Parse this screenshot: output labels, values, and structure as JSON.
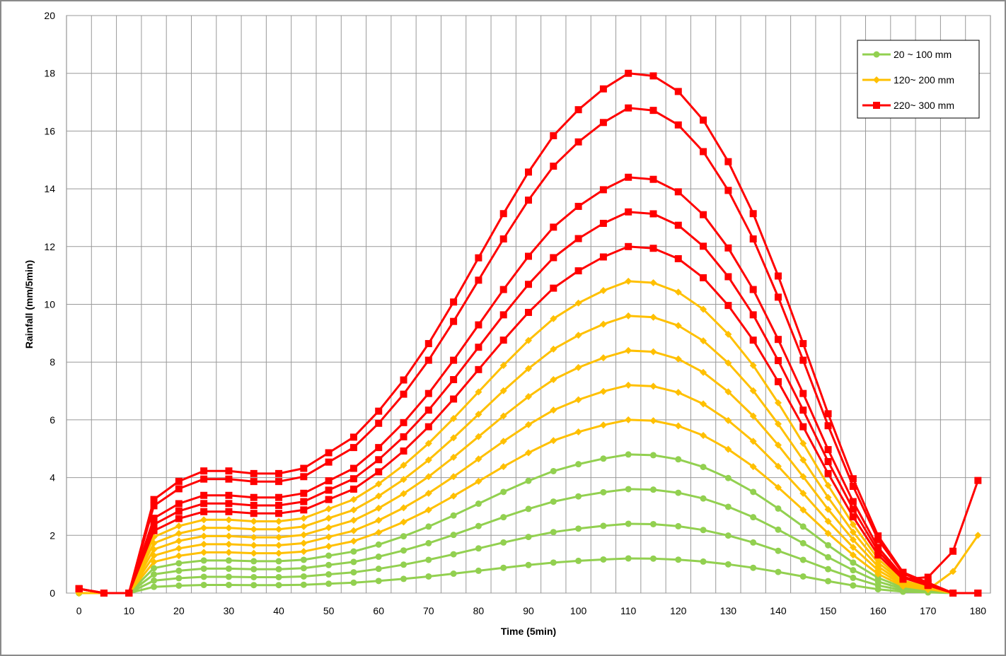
{
  "chart_data": {
    "type": "line",
    "title": "",
    "xlabel": "Time (5min)",
    "ylabel": "Rainfall  (mm/5min)",
    "xlim": [
      0,
      180
    ],
    "ylim": [
      0,
      20
    ],
    "xticks": [
      0,
      10,
      20,
      30,
      40,
      50,
      60,
      70,
      80,
      90,
      100,
      110,
      120,
      130,
      140,
      150,
      160,
      170,
      180
    ],
    "yticks": [
      0,
      2,
      4,
      6,
      8,
      10,
      12,
      14,
      16,
      18,
      20
    ],
    "grid": true,
    "legend_position": "top-right",
    "x": [
      0,
      5,
      10,
      15,
      20,
      25,
      30,
      35,
      40,
      45,
      50,
      55,
      60,
      65,
      70,
      75,
      80,
      85,
      90,
      95,
      100,
      105,
      110,
      115,
      120,
      125,
      130,
      135,
      140,
      145,
      150,
      155,
      160,
      165,
      170,
      175,
      180
    ],
    "profile": [
      0,
      0,
      0,
      0.18,
      0.215,
      0.235,
      0.235,
      0.23,
      0.23,
      0.24,
      0.27,
      0.3,
      0.35,
      0.41,
      0.48,
      0.56,
      0.645,
      0.73,
      0.81,
      0.88,
      0.93,
      0.97,
      1.0,
      0.995,
      0.965,
      0.91,
      0.83,
      0.73,
      0.61,
      0.48,
      0.345,
      0.22,
      0.11,
      0.04,
      0.02,
      0,
      0
    ],
    "groups": [
      {
        "name": "20 ~ 100 mm",
        "color": "#92d050",
        "marker": "circle",
        "peaks": [
          1.2,
          2.4,
          3.6,
          4.8
        ]
      },
      {
        "name": "120~ 200 mm",
        "color": "#ffc000",
        "marker": "diamond",
        "peaks": [
          6.0,
          7.2,
          8.4,
          9.6,
          10.8
        ]
      },
      {
        "name": "220~ 300 mm",
        "color": "#ff0000",
        "marker": "square",
        "peaks": [
          12.0,
          13.2,
          14.4,
          16.8,
          18.0
        ]
      }
    ],
    "endpoints": {
      "red_last_points": [
        [
          170,
          0.55
        ],
        [
          175,
          1.45
        ],
        [
          180,
          3.9
        ]
      ],
      "red_zero_tail": [
        [
          175,
          0
        ],
        [
          180,
          0
        ]
      ],
      "yellow_last_points": [
        [
          175,
          0.75
        ],
        [
          180,
          2.0
        ]
      ],
      "red_start": [
        [
          0,
          0.15
        ],
        [
          5,
          0
        ]
      ]
    }
  },
  "legend": {
    "items": [
      "20 ~ 100 mm",
      "120~ 200 mm",
      "220~ 300 mm"
    ]
  }
}
